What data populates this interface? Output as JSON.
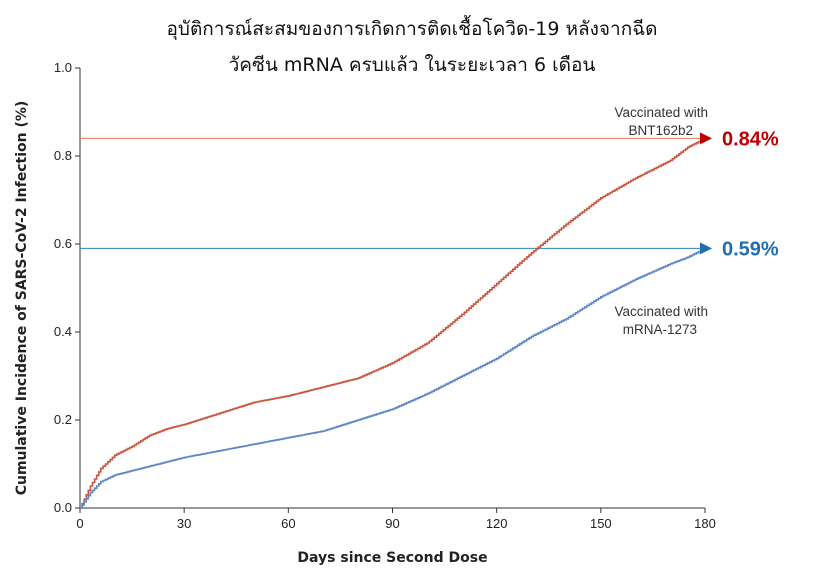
{
  "title_line1": "อุบัติการณ์สะสมของการเกิดการติดเชื้อโควิด-19 หลังจากฉีด",
  "title_line2": "วัคซีน mRNA ครบแล้ว ในระยะเวลา 6 เดือน",
  "chart_data": {
    "type": "line",
    "xlabel": "Days since Second Dose",
    "ylabel": "Cumulative Incidence of SARS-CoV-2 Infection (%)",
    "xlim": [
      0,
      180
    ],
    "ylim": [
      0.0,
      1.0
    ],
    "x_ticks": [
      0,
      30,
      60,
      90,
      120,
      150,
      180
    ],
    "y_ticks": [
      "0.0",
      "0.2",
      "0.4",
      "0.6",
      "0.8",
      "1.0"
    ],
    "grid": false,
    "series": [
      {
        "name": "Vaccinated with BNT162b2",
        "color": "#c8553d",
        "end_label": "0.84%",
        "end_label_color": "#c00000",
        "x": [
          0,
          3,
          6,
          10,
          15,
          20,
          25,
          30,
          40,
          50,
          60,
          70,
          80,
          90,
          100,
          110,
          120,
          130,
          140,
          150,
          160,
          170,
          175,
          180
        ],
        "y": [
          0.0,
          0.05,
          0.09,
          0.12,
          0.14,
          0.165,
          0.18,
          0.19,
          0.215,
          0.24,
          0.255,
          0.275,
          0.295,
          0.33,
          0.375,
          0.44,
          0.51,
          0.58,
          0.645,
          0.705,
          0.75,
          0.79,
          0.82,
          0.84
        ]
      },
      {
        "name": "Vaccinated with mRNA-1273",
        "color": "#5b86c5",
        "end_label": "0.59%",
        "end_label_color": "#1f6fb0",
        "x": [
          0,
          3,
          6,
          10,
          15,
          20,
          30,
          40,
          50,
          60,
          70,
          80,
          90,
          100,
          110,
          120,
          130,
          140,
          150,
          160,
          170,
          175,
          180
        ],
        "y": [
          0.0,
          0.035,
          0.06,
          0.075,
          0.085,
          0.095,
          0.115,
          0.13,
          0.145,
          0.16,
          0.175,
          0.2,
          0.225,
          0.26,
          0.3,
          0.34,
          0.39,
          0.43,
          0.48,
          0.52,
          0.555,
          0.57,
          0.59
        ]
      }
    ],
    "reference_lines": [
      {
        "y": 0.84,
        "color": "#e07a5f"
      },
      {
        "y": 0.59,
        "color": "#2e86c1"
      }
    ]
  }
}
